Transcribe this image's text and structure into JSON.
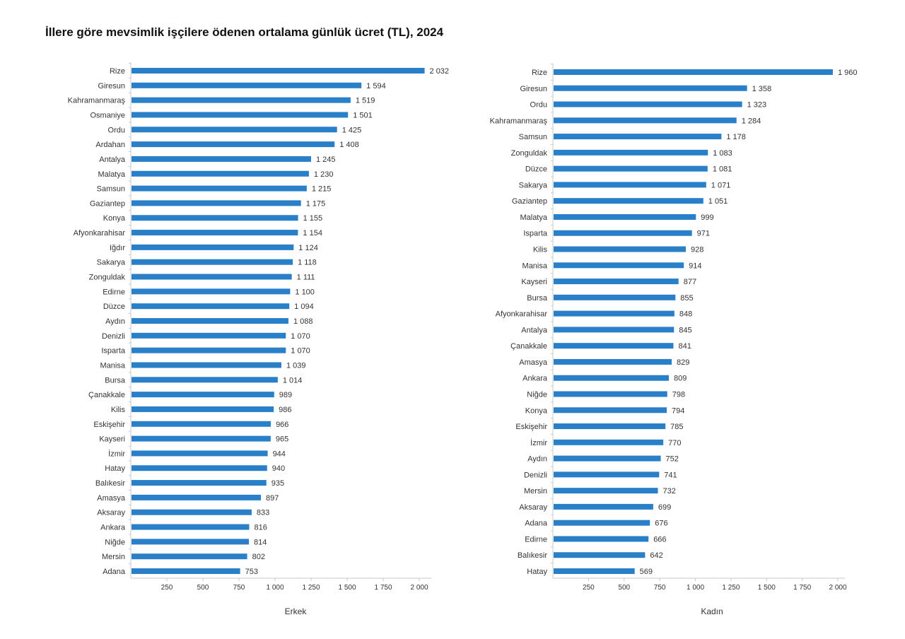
{
  "title": "İllere göre mevsimlik işçilere ödenen ortalama günlük ücret (TL), 2024",
  "colors": {
    "bar": "#2a7fc9",
    "axis": "#c8c8c8",
    "text": "#333333"
  },
  "chart_data": [
    {
      "type": "bar",
      "orientation": "horizontal",
      "xlabel": "Erkek",
      "xlim": [
        0,
        2000
      ],
      "ticks": [
        250,
        500,
        750,
        1000,
        1250,
        1500,
        1750,
        2000
      ],
      "tick_labels": [
        "250",
        "500",
        "750",
        "1 000",
        "1 250",
        "1 500",
        "1 750",
        "2 000"
      ],
      "categories": [
        "Rize",
        "Giresun",
        "Kahramanmaraş",
        "Osmaniye",
        "Ordu",
        "Ardahan",
        "Antalya",
        "Malatya",
        "Samsun",
        "Gaziantep",
        "Konya",
        "Afyonkarahisar",
        "Iğdır",
        "Sakarya",
        "Zonguldak",
        "Edirne",
        "Düzce",
        "Aydın",
        "Denizli",
        "Isparta",
        "Manisa",
        "Bursa",
        "Çanakkale",
        "Kilis",
        "Eskişehir",
        "Kayseri",
        "İzmir",
        "Hatay",
        "Balıkesir",
        "Amasya",
        "Aksaray",
        "Ankara",
        "Niğde",
        "Mersin",
        "Adana"
      ],
      "values": [
        2032,
        1594,
        1519,
        1501,
        1425,
        1408,
        1245,
        1230,
        1215,
        1175,
        1155,
        1154,
        1124,
        1118,
        1111,
        1100,
        1094,
        1088,
        1070,
        1070,
        1039,
        1014,
        989,
        986,
        966,
        965,
        944,
        940,
        935,
        897,
        833,
        816,
        814,
        802,
        753
      ],
      "value_labels": [
        "2 032",
        "1 594",
        "1 519",
        "1 501",
        "1 425",
        "1 408",
        "1 245",
        "1 230",
        "1 215",
        "1 175",
        "1 155",
        "1 154",
        "1 124",
        "1 118",
        "1 111",
        "1 100",
        "1 094",
        "1 088",
        "1 070",
        "1 070",
        "1 039",
        "1 014",
        "989",
        "986",
        "966",
        "965",
        "944",
        "940",
        "935",
        "897",
        "833",
        "816",
        "814",
        "802",
        "753"
      ],
      "grid": false
    },
    {
      "type": "bar",
      "orientation": "horizontal",
      "xlabel": "Kadın",
      "xlim": [
        0,
        2000
      ],
      "ticks": [
        250,
        500,
        750,
        1000,
        1250,
        1500,
        1750,
        2000
      ],
      "tick_labels": [
        "250",
        "500",
        "750",
        "1 000",
        "1 250",
        "1 500",
        "1 750",
        "2 000"
      ],
      "categories": [
        "Rize",
        "Giresun",
        "Ordu",
        "Kahramanmaraş",
        "Samsun",
        "Zonguldak",
        "Düzce",
        "Sakarya",
        "Gaziantep",
        "Malatya",
        "Isparta",
        "Kilis",
        "Manisa",
        "Kayseri",
        "Bursa",
        "Afyonkarahisar",
        "Antalya",
        "Çanakkale",
        "Amasya",
        "Ankara",
        "Niğde",
        "Konya",
        "Eskişehir",
        "İzmir",
        "Aydın",
        "Denizli",
        "Mersin",
        "Aksaray",
        "Adana",
        "Edirne",
        "Balıkesir",
        "Hatay"
      ],
      "values": [
        1960,
        1358,
        1323,
        1284,
        1178,
        1083,
        1081,
        1071,
        1051,
        999,
        971,
        928,
        914,
        877,
        855,
        848,
        845,
        841,
        829,
        809,
        798,
        794,
        785,
        770,
        752,
        741,
        732,
        699,
        676,
        666,
        642,
        569
      ],
      "value_labels": [
        "1 960",
        "1 358",
        "1 323",
        "1 284",
        "1 178",
        "1 083",
        "1 081",
        "1 071",
        "1 051",
        "999",
        "971",
        "928",
        "914",
        "877",
        "855",
        "848",
        "845",
        "841",
        "829",
        "809",
        "798",
        "794",
        "785",
        "770",
        "752",
        "741",
        "732",
        "699",
        "676",
        "666",
        "642",
        "569"
      ],
      "grid": false
    }
  ]
}
